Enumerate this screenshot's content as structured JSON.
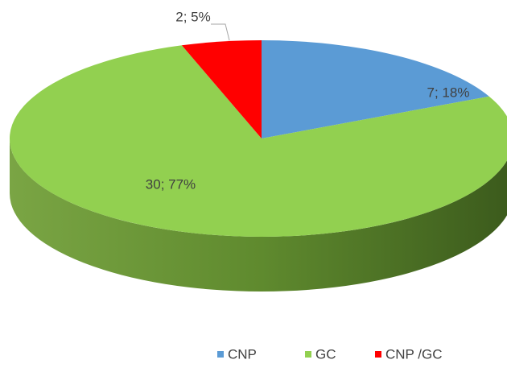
{
  "chart_data": {
    "type": "pie3d",
    "categories": [
      "CNP",
      "GC",
      "CNP /GC"
    ],
    "values": [
      7,
      30,
      2
    ],
    "value_labels": [
      "7; 18%",
      "30; 77%",
      "2; 5%"
    ],
    "colors": [
      "#5b9bd5",
      "#92d050",
      "#ff0000"
    ],
    "legend": "bottom"
  }
}
